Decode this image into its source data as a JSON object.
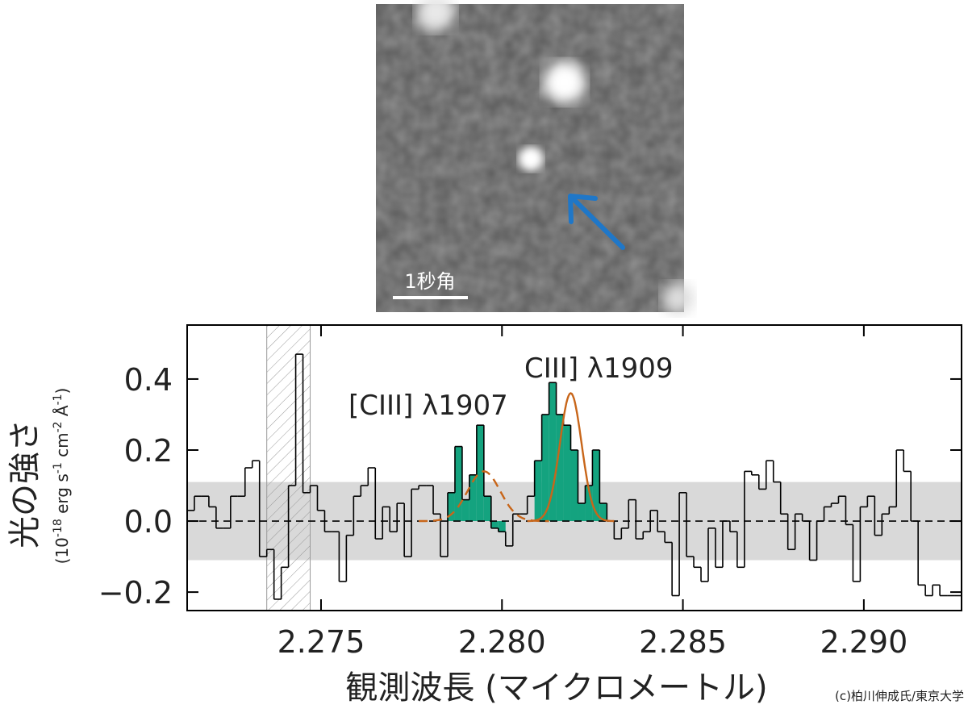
{
  "image": {
    "scale_label": "1秒角"
  },
  "chart_data": {
    "type": "step",
    "x": [
      2.2714,
      2.2716,
      2.2718,
      2.272,
      2.2722,
      2.2724,
      2.2726,
      2.2728,
      2.273,
      2.2732,
      2.2734,
      2.2736,
      2.2738,
      2.274,
      2.2742,
      2.2744,
      2.2746,
      2.2748,
      2.275,
      2.2752,
      2.2754,
      2.2756,
      2.2758,
      2.276,
      2.2762,
      2.2764,
      2.2766,
      2.2768,
      2.277,
      2.2772,
      2.2774,
      2.2776,
      2.2778,
      2.278,
      2.2782,
      2.2784,
      2.2786,
      2.2788,
      2.279,
      2.2792,
      2.2794,
      2.2796,
      2.2798,
      2.28,
      2.2802,
      2.2804,
      2.2806,
      2.2808,
      2.281,
      2.2812,
      2.2814,
      2.2816,
      2.2818,
      2.282,
      2.2822,
      2.2824,
      2.2826,
      2.2828,
      2.283,
      2.2832,
      2.2834,
      2.2836,
      2.2838,
      2.284,
      2.2842,
      2.2844,
      2.2846,
      2.2848,
      2.285,
      2.2852,
      2.2854,
      2.2856,
      2.2858,
      2.286,
      2.2862,
      2.2864,
      2.2866,
      2.2868,
      2.287,
      2.2872,
      2.2874,
      2.2876,
      2.2878,
      2.288,
      2.2882,
      2.2884,
      2.2886,
      2.2888,
      2.289,
      2.2892,
      2.2894,
      2.2896,
      2.2898,
      2.29,
      2.2902,
      2.2904,
      2.2906,
      2.2908,
      2.291,
      2.2912,
      2.2914,
      2.2916,
      2.2918,
      2.292,
      2.2922,
      2.2924,
      2.2926
    ],
    "values": [
      0.03,
      0.07,
      0.07,
      0.04,
      -0.02,
      -0.02,
      0.07,
      0.07,
      0.15,
      0.17,
      -0.1,
      -0.08,
      -0.22,
      -0.13,
      0.1,
      0.47,
      0.08,
      0.1,
      0.03,
      -0.03,
      -0.03,
      -0.17,
      -0.04,
      0.07,
      0.1,
      0.15,
      -0.05,
      0.04,
      -0.03,
      0.05,
      -0.1,
      0.09,
      0.1,
      0.1,
      0.02,
      -0.1,
      0.08,
      0.21,
      0.06,
      0.13,
      0.27,
      0.07,
      -0.02,
      -0.03,
      -0.07,
      0.02,
      0.02,
      0.07,
      0.17,
      0.3,
      0.39,
      0.3,
      0.27,
      0.2,
      0.05,
      0.1,
      0.2,
      0.05,
      0.0,
      -0.05,
      -0.02,
      0.06,
      -0.05,
      -0.03,
      0.03,
      -0.03,
      -0.06,
      -0.21,
      0.08,
      -0.1,
      -0.13,
      -0.17,
      -0.02,
      -0.13,
      0.0,
      -0.03,
      -0.13,
      0.14,
      0.13,
      0.09,
      0.17,
      0.11,
      0.02,
      -0.08,
      0.02,
      0.0,
      -0.11,
      0.0,
      0.04,
      0.05,
      0.07,
      -0.01,
      -0.17,
      0.04,
      0.07,
      -0.04,
      0.02,
      0.04,
      0.2,
      0.14,
      0.0,
      -0.18,
      -0.21,
      -0.18,
      -0.21,
      -0.21,
      -0.21
    ],
    "color": "#000000",
    "highlight_ranges": [
      [
        2.2785,
        2.2801
      ],
      [
        2.2809,
        2.2829
      ]
    ],
    "highlight_color": "#14a37f",
    "noise_band": {
      "lower": -0.11,
      "upper": 0.11,
      "color": "#d9d9d9"
    },
    "masked_range": [
      2.2735,
      2.2747
    ],
    "reference_line": 0,
    "fits": [
      {
        "center": 2.2795,
        "amplitude": 0.14,
        "sigma": 0.00045,
        "style": "dashed"
      },
      {
        "center": 2.2819,
        "amplitude": 0.36,
        "sigma": 0.0003,
        "style": "solid"
      }
    ],
    "fit_color": "#c8661a",
    "annotations": [
      "[CIII] λ1907",
      "CIII] λ1909"
    ],
    "xlabel": "観測波長 (マイクロメートル)",
    "ylabel": "光の強さ",
    "ylabel_units": [
      "(10",
      "-18",
      " erg s",
      "-1",
      " cm",
      "-2",
      " Å",
      "-1",
      ")"
    ],
    "xlim": [
      2.2713,
      2.2927
    ],
    "ylim": [
      -0.252,
      0.552
    ],
    "xticks": [
      2.275,
      {
        "value": 2.28,
        "label": "2.280"
      },
      2.285,
      {
        "value": 2.29,
        "label": "2.290"
      }
    ],
    "yticks": [
      {
        "value": -0.2,
        "label": "−0.2"
      },
      {
        "value": 0,
        "label": "0.0"
      },
      0.2,
      0.4
    ]
  },
  "credit": "(c)柏川伸成氏/東京大学"
}
